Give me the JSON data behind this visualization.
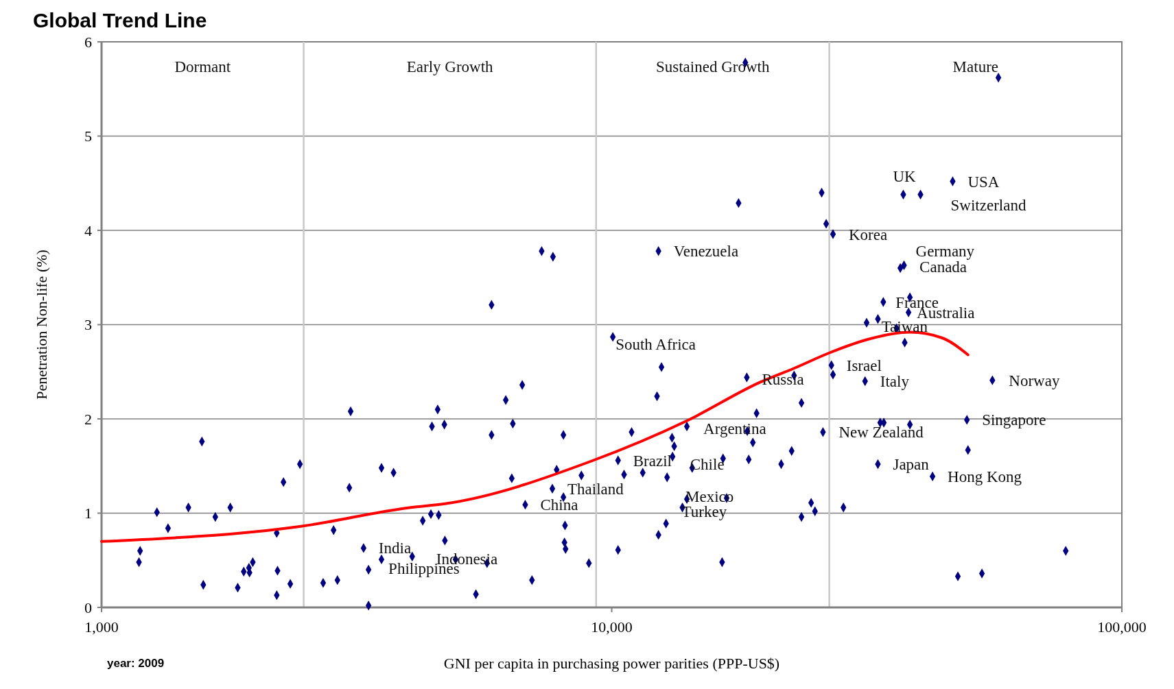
{
  "chart_data": {
    "type": "scatter",
    "title": "Global Trend Line",
    "xlabel": "GNI per capita in purchasing power parities (PPP-US$)",
    "ylabel": "Penetration Non-life (%)",
    "log": "x",
    "xlim": [
      1000,
      100000
    ],
    "xticks": [
      {
        "value": 1000,
        "label": "1,000"
      },
      {
        "value": 10000,
        "label": "10,000"
      },
      {
        "value": 100000,
        "label": "100,000"
      }
    ],
    "ylim": [
      0,
      6
    ],
    "yticks": [
      0,
      1,
      2,
      3,
      4,
      5,
      6
    ],
    "grid": "y",
    "series": [
      {
        "color": "#000080",
        "marker": "diamond",
        "x": [
          1184,
          1190,
          1284,
          1350,
          1480,
          1573,
          1583,
          1671,
          1788,
          1849,
          1900,
          1950,
          1945,
          1979,
          2205,
          2213,
          2205,
          2273,
          2344,
          2448,
          2719,
          2850,
          2900,
          3060,
          3078,
          3263,
          3337,
          3337,
          3538,
          3538,
          3736,
          4064,
          4262,
          4422,
          4443,
          4559,
          4580,
          4699,
          4710,
          4943,
          5418,
          5697,
          5814,
          5814,
          6200,
          6370,
          6400,
          6678,
          6769,
          6978,
          7290,
          7671,
          7650,
          7800,
          8042,
          8042,
          8100,
          8080,
          8120,
          8722,
          9022,
          10051,
          10291,
          10291,
          10574,
          10940,
          11505,
          12350,
          12350,
          12520,
          12270,
          12780,
          12840,
          13130,
          13260,
          13160,
          14040,
          13760,
          14040,
          14380,
          16460,
          16530,
          16800,
          18280,
          17730,
          18400,
          18440,
          18560,
          18910,
          19230,
          21490,
          22530,
          22780,
          23550,
          23550,
          24600,
          25030,
          25800,
          25950,
          26330,
          26960,
          27150,
          27150,
          28460,
          31380,
          31600,
          33250,
          33250,
          33600,
          34150,
          34070,
          36170,
          36790,
          37410,
          37290,
          37530,
          38180,
          38420,
          38420,
          40300,
          42550,
          46600,
          47710,
          49690,
          49930,
          53180,
          55750,
          57280,
          77630
        ],
        "values": [
          0.48,
          0.6,
          1.01,
          0.84,
          1.06,
          1.76,
          0.24,
          0.96,
          1.06,
          0.21,
          0.38,
          0.37,
          0.42,
          0.48,
          0.79,
          0.39,
          0.13,
          1.33,
          0.25,
          1.52,
          0.26,
          0.82,
          0.29,
          1.27,
          2.08,
          0.63,
          0.02,
          0.4,
          0.51,
          1.48,
          1.43,
          0.54,
          0.92,
          0.99,
          1.92,
          2.1,
          0.98,
          1.94,
          0.71,
          0.51,
          0.14,
          0.47,
          3.21,
          1.83,
          2.2,
          1.37,
          1.95,
          2.36,
          1.09,
          0.29,
          3.78,
          3.72,
          1.26,
          1.46,
          1.83,
          1.17,
          0.87,
          0.69,
          0.62,
          1.4,
          0.47,
          2.87,
          1.56,
          0.61,
          1.41,
          1.86,
          1.43,
          0.77,
          3.78,
          2.55,
          2.24,
          0.89,
          1.38,
          1.8,
          1.71,
          1.6,
          1.92,
          1.06,
          1.15,
          1.48,
          0.48,
          1.58,
          1.16,
          5.78,
          4.29,
          2.44,
          1.87,
          1.57,
          1.75,
          2.06,
          1.52,
          1.66,
          2.46,
          2.17,
          0.96,
          1.11,
          1.02,
          4.4,
          1.86,
          4.07,
          2.57,
          2.47,
          3.96,
          1.06,
          2.4,
          3.02,
          3.06,
          1.52,
          1.96,
          1.96,
          3.24,
          2.96,
          3.6,
          3.63,
          4.38,
          2.81,
          3.13,
          3.29,
          1.94,
          4.38,
          1.39,
          4.52,
          0.33,
          1.99,
          1.67,
          0.36,
          2.41,
          5.62,
          0.6
        ]
      },
      {
        "type": "line",
        "color": "#ff0000",
        "marker": "none",
        "line_style": "solid",
        "x": [
          1000,
          2457,
          4036,
          4710,
          9204,
          14040,
          19560,
          22850,
          26700,
          31600,
          38420,
          44380,
          49930
        ],
        "values": [
          0.7,
          0.86,
          1.06,
          1.1,
          1.56,
          1.98,
          2.39,
          2.54,
          2.7,
          2.84,
          2.92,
          2.86,
          2.68
        ]
      }
    ],
    "ref_lines": [
      {
        "axis": "x",
        "value": 2490,
        "color": "#c8c8c8"
      },
      {
        "axis": "x",
        "value": 9320,
        "color": "#c8c8c8"
      },
      {
        "axis": "x",
        "value": 26700,
        "color": "#c8c8c8"
      }
    ],
    "annotations": [
      "Dormant",
      "Early Growth",
      "Sustained Growth",
      "Mature",
      {
        "text": "India",
        "x": 3263,
        "y": 0.63
      },
      {
        "text": "Philippines",
        "x": 3337,
        "y": 0.4
      },
      {
        "text": "Indonesia",
        "x": 4064,
        "y": 0.54
      },
      {
        "text": "China",
        "x": 6769,
        "y": 1.09
      },
      {
        "text": "Thailand",
        "x": 7650,
        "y": 1.26
      },
      {
        "text": "Brazil",
        "x": 10291,
        "y": 1.56
      },
      {
        "text": "Chile",
        "x": 14380,
        "y": 1.48
      },
      {
        "text": "Mexico",
        "x": 14040,
        "y": 1.15
      },
      {
        "text": "Turkey",
        "x": 13760,
        "y": 1.06
      },
      {
        "text": "Argentina",
        "x": 14040,
        "y": 1.92
      },
      {
        "text": "South Africa",
        "x": 10051,
        "y": 2.87
      },
      {
        "text": "Venezuela",
        "x": 12350,
        "y": 3.78
      },
      {
        "text": "Russia",
        "x": 18400,
        "y": 2.44
      },
      {
        "text": "Israel",
        "x": 26960,
        "y": 2.57
      },
      {
        "text": "Italy",
        "x": 31380,
        "y": 2.4
      },
      {
        "text": "Korea",
        "x": 27150,
        "y": 3.96
      },
      {
        "text": "New Zealand",
        "x": 25950,
        "y": 1.86
      },
      {
        "text": "Japan",
        "x": 33250,
        "y": 1.52
      },
      {
        "text": "Hong Kong",
        "x": 42550,
        "y": 1.39
      },
      {
        "text": "Singapore",
        "x": 49690,
        "y": 1.99
      },
      {
        "text": "Norway",
        "x": 55750,
        "y": 2.41
      },
      {
        "text": "France",
        "x": 34070,
        "y": 3.24
      },
      {
        "text": "Australia",
        "x": 38180,
        "y": 3.13
      },
      {
        "text": "Taiwan",
        "x": 36170,
        "y": 2.96
      },
      {
        "text": "Germany",
        "x": 37410,
        "y": 3.63
      },
      {
        "text": "Canada",
        "x": 36790,
        "y": 3.6
      },
      {
        "text": "UK",
        "x": 37290,
        "y": 4.38
      },
      {
        "text": "USA",
        "x": 46600,
        "y": 4.52
      },
      {
        "text": "Switzerland",
        "x": 40300,
        "y": 4.38
      },
      "year: 2009"
    ]
  }
}
